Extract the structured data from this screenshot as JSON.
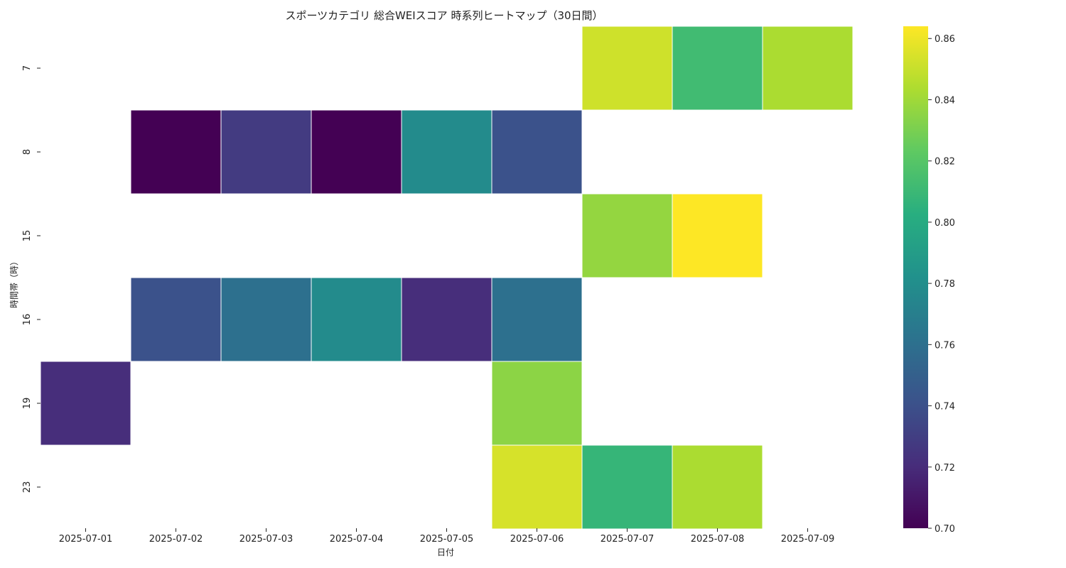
{
  "chart_data": {
    "type": "heatmap",
    "title": "スポーツカテゴリ 総合WEIスコア 時系列ヒートマップ（30日間）",
    "xlabel": "日付",
    "ylabel": "時間帯（時）",
    "x": [
      "2025-07-01",
      "2025-07-02",
      "2025-07-03",
      "2025-07-04",
      "2025-07-05",
      "2025-07-06",
      "2025-07-07",
      "2025-07-08",
      "2025-07-09"
    ],
    "y": [
      "7",
      "8",
      "15",
      "16",
      "19",
      "23"
    ],
    "values": [
      [
        null,
        null,
        null,
        null,
        null,
        null,
        0.852,
        0.812,
        0.843
      ],
      [
        null,
        0.7,
        0.728,
        0.7,
        0.778,
        0.741,
        null,
        null,
        null
      ],
      [
        null,
        null,
        null,
        null,
        null,
        null,
        0.837,
        0.864,
        null
      ],
      [
        null,
        0.741,
        0.76,
        0.778,
        0.721,
        0.76,
        null,
        null,
        null
      ],
      [
        0.721,
        null,
        null,
        null,
        null,
        0.835,
        null,
        null,
        null
      ],
      [
        null,
        null,
        null,
        null,
        null,
        0.854,
        0.808,
        0.843,
        null
      ]
    ],
    "colormap": "viridis",
    "zlim": [
      0.7,
      0.864
    ],
    "colorbar_ticks": [
      "0.70",
      "0.72",
      "0.74",
      "0.76",
      "0.78",
      "0.80",
      "0.82",
      "0.84",
      "0.86"
    ],
    "colorbar_tick_values": [
      0.7,
      0.72,
      0.74,
      0.76,
      0.78,
      0.8,
      0.82,
      0.84,
      0.86
    ]
  }
}
